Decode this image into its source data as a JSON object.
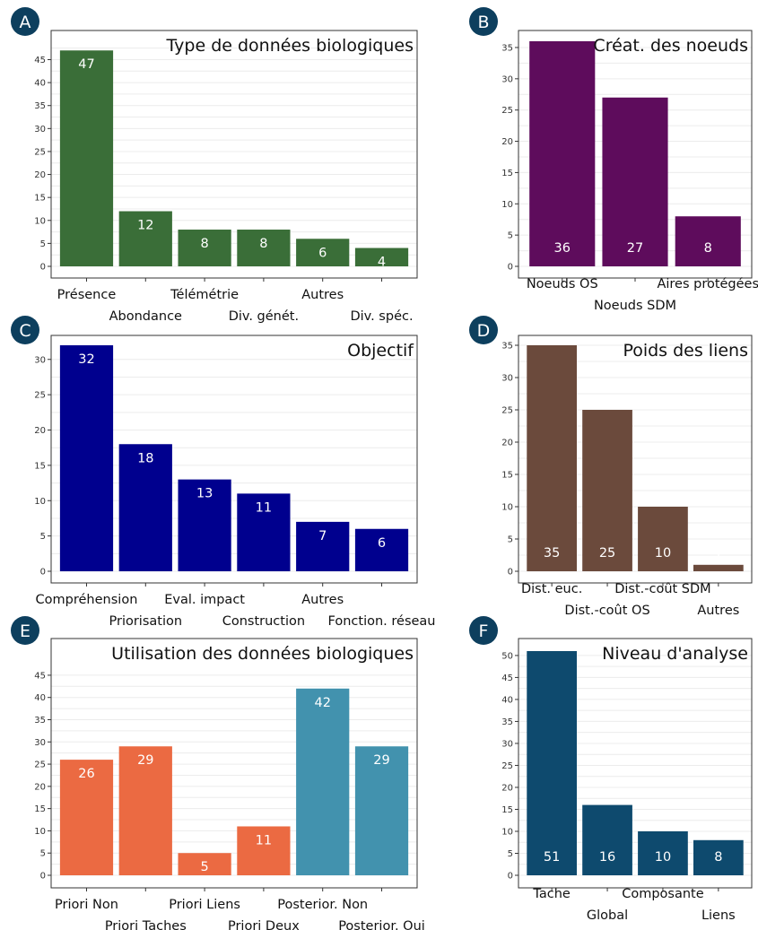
{
  "colors": {
    "A": "#3a6e38",
    "B": "#5e0c5c",
    "C": "#00008e",
    "D": "#6b4a3c",
    "E_priori": "#eb6a42",
    "E_posterior": "#4292ae",
    "F": "#0e4a6e",
    "badge": "#0d3f5e",
    "grid": "#ececec",
    "border": "#333333"
  },
  "chart_data": [
    {
      "panel": "A",
      "type": "bar",
      "title": "Type de données biologiques",
      "categories": [
        "Présence",
        "Abondance",
        "Télémétrie",
        "Div. génét.",
        "Autres",
        "Div. spéc."
      ],
      "values": [
        47,
        12,
        8,
        8,
        6,
        4
      ],
      "ylim": [
        0,
        49
      ],
      "yticks": [
        "0",
        "5",
        "10",
        "15",
        "20",
        "25",
        "30",
        "35",
        "40",
        "45"
      ],
      "label_pos": "top",
      "grid": true
    },
    {
      "panel": "B",
      "type": "bar",
      "title": "Créat. des noeuds",
      "categories": [
        "Noeuds OS",
        "Noeuds SDM",
        "Aires protégées"
      ],
      "values": [
        36,
        27,
        8
      ],
      "ylim": [
        0,
        36
      ],
      "yticks": [
        "0",
        "5",
        "10",
        "15",
        "20",
        "25",
        "30",
        "35"
      ],
      "label_pos": "bottom",
      "grid": true
    },
    {
      "panel": "C",
      "type": "bar",
      "title": "Objectif",
      "categories": [
        "Compréhension",
        "Priorisation",
        "Eval. impact",
        "Construction",
        "Autres",
        "Fonction. réseau"
      ],
      "values": [
        32,
        18,
        13,
        11,
        7,
        6
      ],
      "ylim": [
        0,
        32
      ],
      "yticks": [
        "0",
        "5",
        "10",
        "15",
        "20",
        "25",
        "30"
      ],
      "label_pos": "top",
      "grid": true
    },
    {
      "panel": "D",
      "type": "bar",
      "title": "Poids des liens",
      "categories": [
        "Dist. euc.",
        "Dist.-coût OS",
        "Dist.-coût SDM",
        "Autres"
      ],
      "values": [
        35,
        25,
        10,
        1
      ],
      "ylim": [
        0,
        35
      ],
      "yticks": [
        "0",
        "5",
        "10",
        "15",
        "20",
        "25",
        "30",
        "35"
      ],
      "label_pos": "bottom",
      "grid": true
    },
    {
      "panel": "E",
      "type": "bar",
      "title": "Utilisation des données biologiques",
      "categories": [
        "Priori Non",
        "Priori Taches",
        "Priori Liens",
        "Priori Deux",
        "Posterior. Non",
        "Posterior. Oui"
      ],
      "values": [
        26,
        29,
        5,
        11,
        42,
        29
      ],
      "groups": [
        "priori",
        "priori",
        "priori",
        "priori",
        "posterior",
        "posterior"
      ],
      "ylim": [
        0,
        47
      ],
      "yticks": [
        "0",
        "5",
        "10",
        "15",
        "20",
        "25",
        "30",
        "35",
        "40",
        "45"
      ],
      "label_pos": "top",
      "grid": true
    },
    {
      "panel": "F",
      "type": "bar",
      "title": "Niveau d'analyse",
      "categories": [
        "Tache",
        "Global",
        "Composante",
        "Liens"
      ],
      "values": [
        51,
        16,
        10,
        8
      ],
      "ylim": [
        0,
        51
      ],
      "yticks": [
        "0",
        "5",
        "10",
        "15",
        "20",
        "25",
        "30",
        "35",
        "40",
        "45",
        "50"
      ],
      "label_pos": "bottom",
      "grid": true
    }
  ]
}
